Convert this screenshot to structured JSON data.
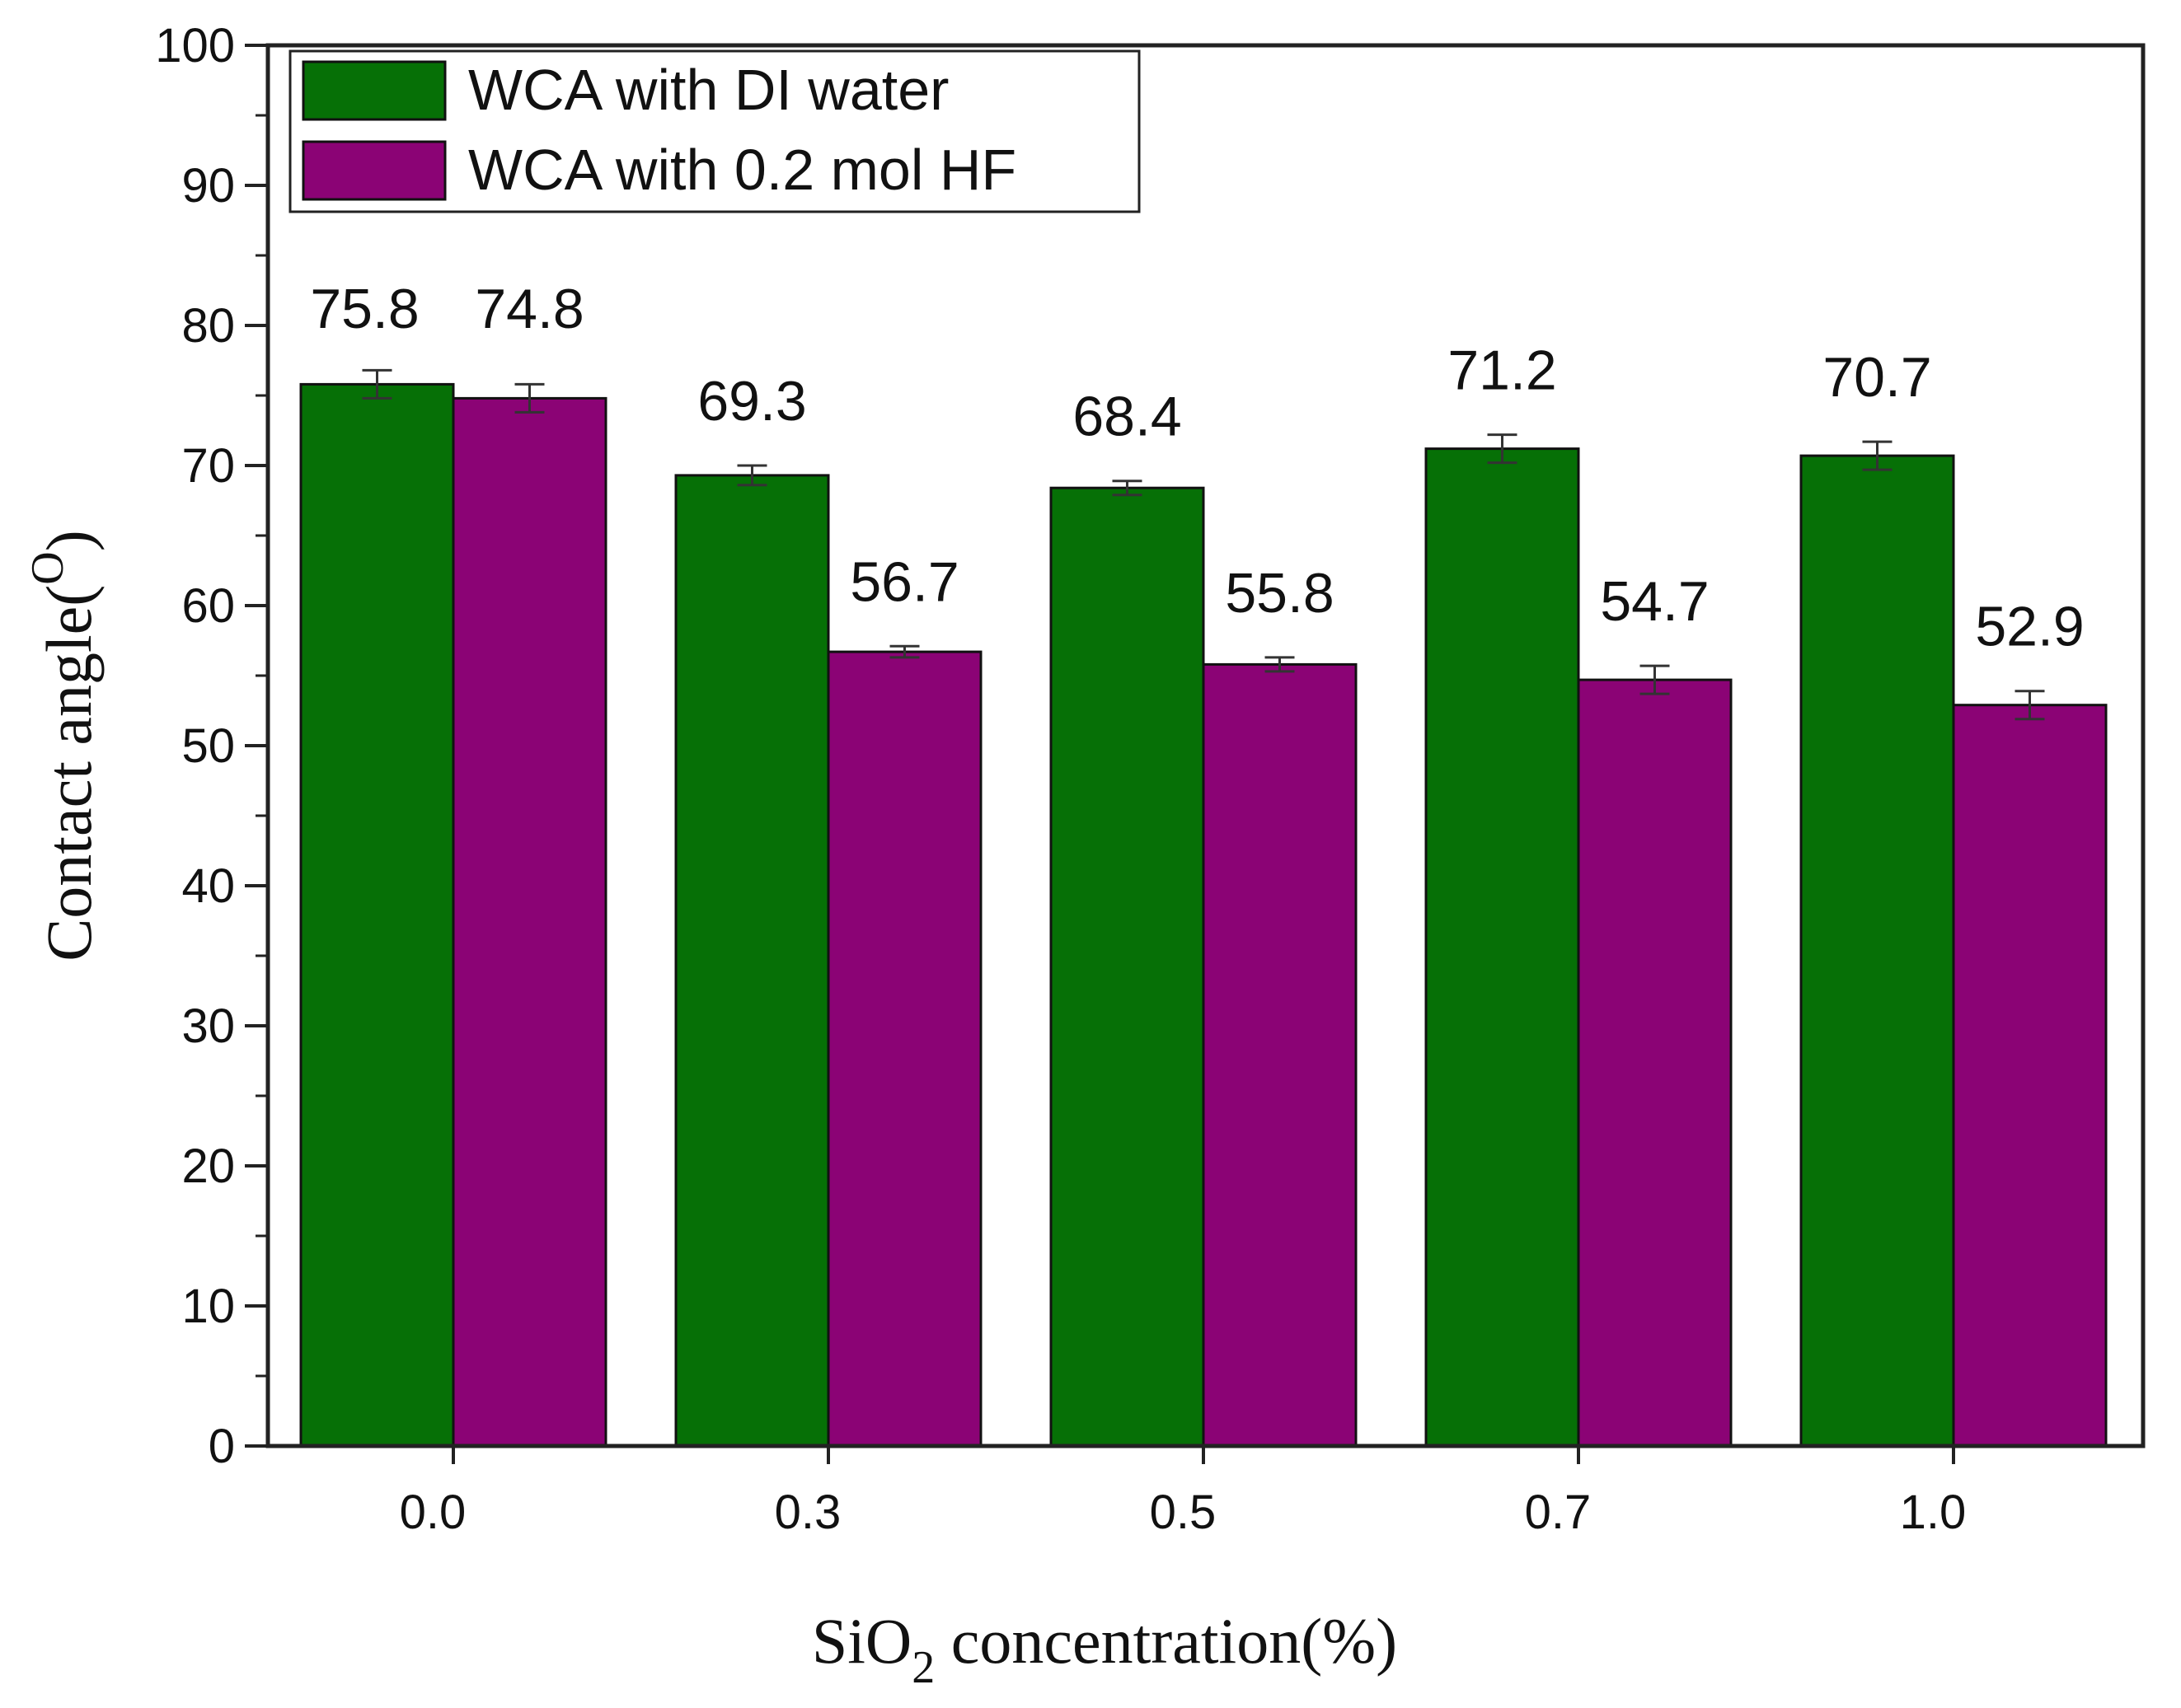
{
  "chart_data": {
    "type": "bar",
    "categories": [
      "0.0",
      "0.3",
      "0.5",
      "0.7",
      "1.0"
    ],
    "series": [
      {
        "name": "WCA with DI water",
        "color": "#067006",
        "values": [
          75.8,
          69.3,
          68.4,
          71.2,
          70.7
        ],
        "labels": [
          "75.8",
          "69.3",
          "68.4",
          "71.2",
          "70.7"
        ],
        "errors": [
          1.0,
          0.7,
          0.5,
          1.0,
          1.0
        ]
      },
      {
        "name": "WCA with 0.2 mol HF",
        "color": "#8b0375",
        "values": [
          74.8,
          56.7,
          55.8,
          54.7,
          52.9
        ],
        "labels": [
          "74.8",
          "56.7",
          "55.8",
          "54.7",
          "52.9"
        ],
        "errors": [
          1.0,
          0.4,
          0.5,
          1.0,
          1.0
        ]
      }
    ],
    "ylim": [
      0,
      100
    ],
    "yticks": [
      "0",
      "10",
      "20",
      "30",
      "40",
      "50",
      "60",
      "70",
      "80",
      "90",
      "100"
    ],
    "ylabel": {
      "main": "Contact angle(",
      "sup": "O",
      "end": ")"
    },
    "xlabel": {
      "pre": "SiO",
      "sub": "2",
      "post": " concentration(%)"
    },
    "legend_position": "top-left"
  }
}
